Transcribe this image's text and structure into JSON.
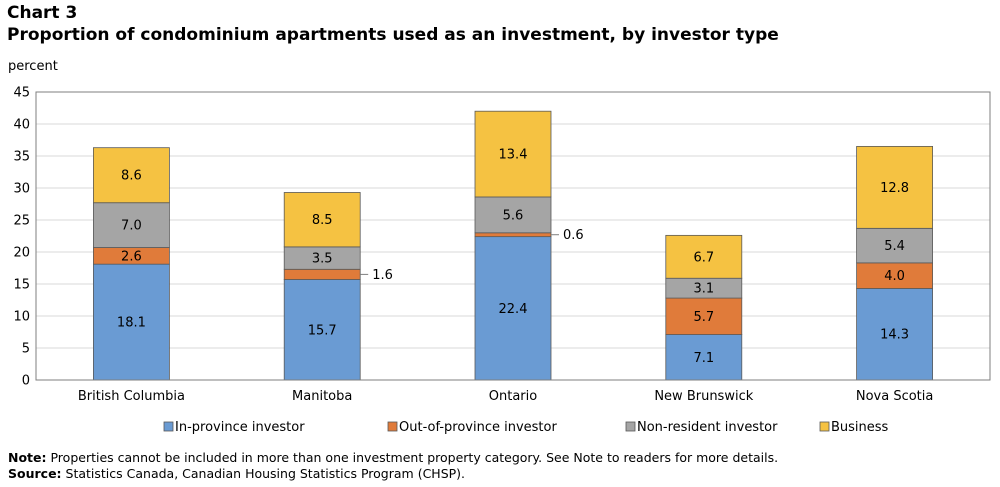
{
  "header": {
    "chart_number": "Chart 3",
    "title": "Proportion of condominium  apartments used as an investment, by investor type",
    "unit": "percent"
  },
  "footer": {
    "note_label": "Note:",
    "note_text": " Properties cannot be included in more than one investment property category. See Note to  readers for more details.",
    "source_label": "Source:",
    "source_text": " Statistics Canada, Canadian Housing Statistics Program (CHSP)."
  },
  "chart_data": {
    "type": "bar",
    "stacked": true,
    "categories": [
      "British Columbia",
      "Manitoba",
      "Ontario",
      "New Brunswick",
      "Nova Scotia"
    ],
    "series": [
      {
        "name": "In-province investor",
        "color": "#6a9bd3",
        "values": [
          18.1,
          15.7,
          22.4,
          7.1,
          14.3
        ],
        "labels": [
          "18.1",
          "15.7",
          "22.4",
          "7.1",
          "14.3"
        ]
      },
      {
        "name": "Out-of-province investor",
        "color": "#e07b3a",
        "values": [
          2.6,
          1.6,
          0.6,
          5.7,
          4.0
        ],
        "labels": [
          "2.6",
          "1.6",
          "0.6",
          "5.7",
          "4.0"
        ]
      },
      {
        "name": "Non-resident investor",
        "color": "#a5a5a5",
        "values": [
          7.0,
          3.5,
          5.6,
          3.1,
          5.4
        ],
        "labels": [
          "7.0",
          "3.5",
          "5.6",
          "3.1",
          "5.4"
        ]
      },
      {
        "name": "Business",
        "color": "#f5c242",
        "values": [
          8.6,
          8.5,
          13.4,
          6.7,
          12.8
        ],
        "labels": [
          "8.6",
          "8.5",
          "13.4",
          "6.7",
          "12.8"
        ]
      }
    ],
    "ylim": [
      0,
      45
    ],
    "yticks": [
      "0",
      "5",
      "10",
      "15",
      "20",
      "25",
      "30",
      "35",
      "40",
      "45"
    ],
    "grid": true,
    "legend": "bottom"
  }
}
